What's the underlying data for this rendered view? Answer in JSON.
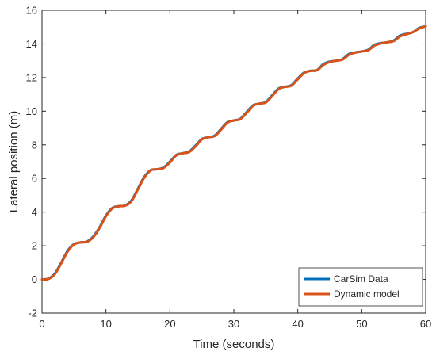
{
  "chart_data": {
    "type": "line",
    "title": "",
    "xlabel": "Time (seconds)",
    "ylabel": "Lateral position (m)",
    "xlim": [
      0,
      60
    ],
    "ylim": [
      -2,
      16
    ],
    "xticks": [
      0,
      10,
      20,
      30,
      40,
      50,
      60
    ],
    "yticks": [
      -2,
      0,
      2,
      4,
      6,
      8,
      10,
      12,
      14,
      16
    ],
    "grid": false,
    "legend_position": "bottom-right",
    "series": [
      {
        "name": "CarSim Data",
        "color": "#0072BD",
        "x": [
          0,
          1,
          2,
          3,
          4,
          5,
          6,
          7,
          8,
          9,
          10,
          11,
          12,
          13,
          14,
          15,
          16,
          17,
          18,
          19,
          20,
          21,
          22,
          23,
          24,
          25,
          26,
          27,
          28,
          29,
          30,
          31,
          32,
          33,
          34,
          35,
          36,
          37,
          38,
          39,
          40,
          41,
          42,
          43,
          44,
          45,
          46,
          47,
          48,
          49,
          50,
          51,
          52,
          53,
          54,
          55,
          56,
          57,
          58,
          59,
          60
        ],
        "y": [
          0.0,
          0.05,
          0.35,
          1.0,
          1.7,
          2.1,
          2.2,
          2.25,
          2.55,
          3.1,
          3.8,
          4.25,
          4.35,
          4.4,
          4.7,
          5.4,
          6.1,
          6.5,
          6.55,
          6.65,
          7.0,
          7.4,
          7.5,
          7.6,
          7.95,
          8.35,
          8.45,
          8.55,
          8.95,
          9.35,
          9.45,
          9.55,
          9.95,
          10.35,
          10.45,
          10.55,
          10.95,
          11.35,
          11.45,
          11.55,
          11.95,
          12.3,
          12.4,
          12.45,
          12.8,
          12.95,
          13.0,
          13.1,
          13.4,
          13.5,
          13.55,
          13.65,
          13.95,
          14.05,
          14.1,
          14.2,
          14.5,
          14.6,
          14.7,
          14.95,
          15.05
        ]
      },
      {
        "name": "Dynamic model",
        "color": "#D95319",
        "x": [
          0,
          1,
          2,
          3,
          4,
          5,
          6,
          7,
          8,
          9,
          10,
          11,
          12,
          13,
          14,
          15,
          16,
          17,
          18,
          19,
          20,
          21,
          22,
          23,
          24,
          25,
          26,
          27,
          28,
          29,
          30,
          31,
          32,
          33,
          34,
          35,
          36,
          37,
          38,
          39,
          40,
          41,
          42,
          43,
          44,
          45,
          46,
          47,
          48,
          49,
          50,
          51,
          52,
          53,
          54,
          55,
          56,
          57,
          58,
          59,
          60
        ],
        "y": [
          0.0,
          0.03,
          0.3,
          0.95,
          1.65,
          2.08,
          2.2,
          2.23,
          2.5,
          3.05,
          3.75,
          4.22,
          4.35,
          4.38,
          4.65,
          5.35,
          6.05,
          6.48,
          6.55,
          6.62,
          6.95,
          7.37,
          7.5,
          7.57,
          7.9,
          8.32,
          8.45,
          8.52,
          8.9,
          9.32,
          9.45,
          9.52,
          9.9,
          10.32,
          10.45,
          10.52,
          10.9,
          11.32,
          11.45,
          11.52,
          11.9,
          12.27,
          12.4,
          12.43,
          12.75,
          12.93,
          13.0,
          13.07,
          13.35,
          13.48,
          13.55,
          13.62,
          13.9,
          14.03,
          14.1,
          14.17,
          14.45,
          14.58,
          14.7,
          14.92,
          15.05
        ]
      }
    ]
  }
}
